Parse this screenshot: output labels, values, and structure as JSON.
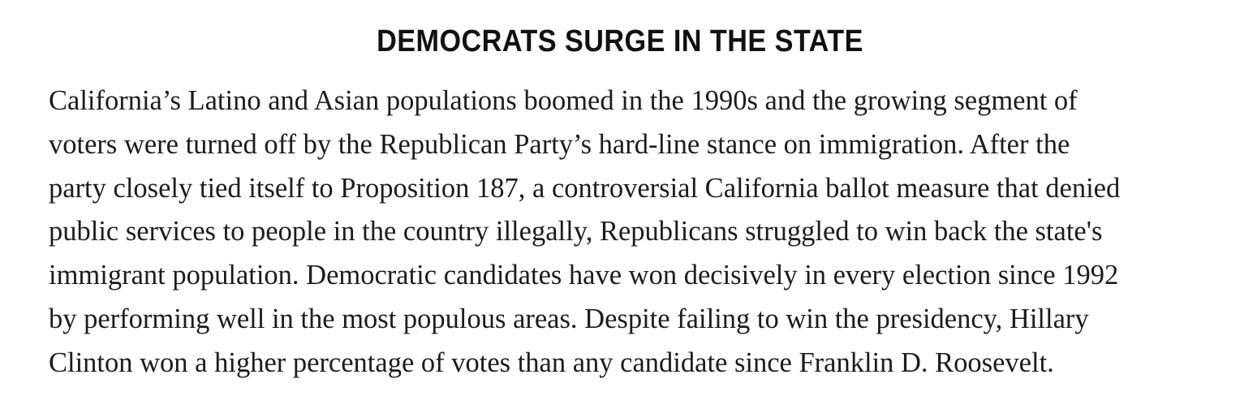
{
  "article": {
    "headline": "DEMOCRATS SURGE IN THE STATE",
    "body_lines": [
      "California’s Latino and Asian populations boomed in the 1990s and the growing segment of",
      "voters were turned off by the Republican Party’s hard-line stance on immigration. After the",
      "party closely tied itself to Proposition 187, a controversial California ballot measure that denied",
      "public services to people in the country illegally, Republicans struggled to win back the state's",
      "immigrant population. Democratic candidates have won decisively in every election since 1992",
      "by performing well in the most populous areas. Despite failing to win the presidency, Hillary",
      "Clinton won a higher percentage of votes than any candidate since Franklin D. Roosevelt."
    ]
  },
  "colors": {
    "headline": "#111111",
    "body": "#1c1c1c",
    "background": "#ffffff"
  }
}
